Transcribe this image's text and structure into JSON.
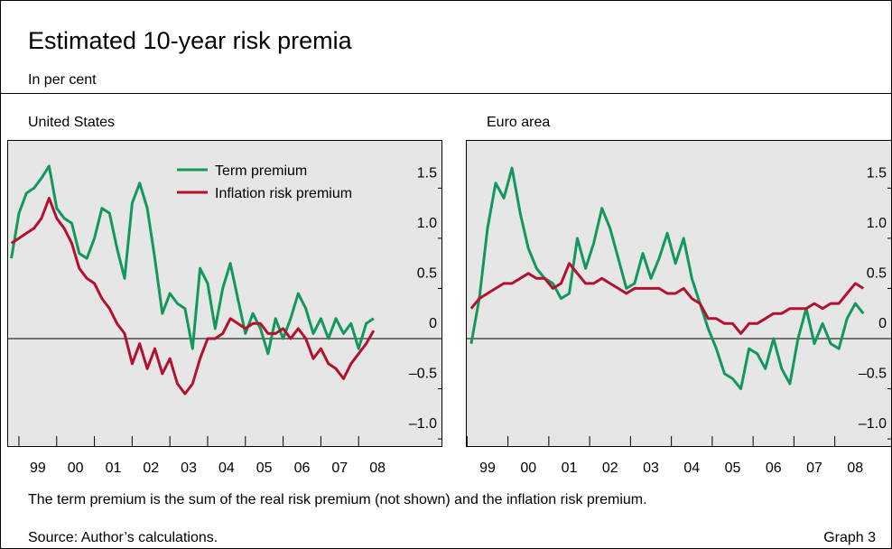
{
  "header": {
    "title": "Estimated 10-year risk premia",
    "subtitle": "In per cent"
  },
  "chart_data": [
    {
      "type": "line",
      "title": "United States",
      "legend": true,
      "x": [
        1998.8,
        1999,
        1999.2,
        1999.4,
        1999.6,
        1999.8,
        2000,
        2000.2,
        2000.4,
        2000.6,
        2000.8,
        2001,
        2001.2,
        2001.4,
        2001.6,
        2001.8,
        2002,
        2002.2,
        2002.4,
        2002.6,
        2002.8,
        2003,
        2003.2,
        2003.4,
        2003.6,
        2003.8,
        2004,
        2004.2,
        2004.4,
        2004.6,
        2004.8,
        2005,
        2005.2,
        2005.4,
        2005.6,
        2005.8,
        2006,
        2006.2,
        2006.4,
        2006.6,
        2006.8,
        2007,
        2007.2,
        2007.4,
        2007.6,
        2007.8,
        2008,
        2008.2,
        2008.4
      ],
      "series": [
        {
          "name": "Term premium",
          "color": "#12985a",
          "values": [
            0.8,
            1.25,
            1.45,
            1.5,
            1.6,
            1.72,
            1.3,
            1.2,
            1.15,
            0.85,
            0.8,
            1.0,
            1.3,
            1.25,
            0.9,
            0.6,
            1.35,
            1.55,
            1.3,
            0.8,
            0.25,
            0.45,
            0.35,
            0.3,
            -0.1,
            0.7,
            0.55,
            0.1,
            0.5,
            0.75,
            0.4,
            0.05,
            0.25,
            0.1,
            -0.15,
            0.2,
            0.0,
            0.2,
            0.45,
            0.3,
            0.05,
            0.2,
            0.0,
            0.2,
            0.05,
            0.15,
            -0.1,
            0.15,
            0.2
          ]
        },
        {
          "name": "Inflation risk premium",
          "color": "#b3122e",
          "values": [
            0.95,
            1.0,
            1.05,
            1.1,
            1.2,
            1.4,
            1.2,
            1.1,
            0.95,
            0.7,
            0.6,
            0.55,
            0.4,
            0.3,
            0.15,
            0.05,
            -0.25,
            -0.05,
            -0.3,
            -0.1,
            -0.35,
            -0.2,
            -0.45,
            -0.55,
            -0.45,
            -0.2,
            0.0,
            0.0,
            0.05,
            0.2,
            0.15,
            0.1,
            0.15,
            0.15,
            0.05,
            0.05,
            0.1,
            0.0,
            0.1,
            0.0,
            -0.2,
            -0.1,
            -0.25,
            -0.3,
            -0.4,
            -0.25,
            -0.15,
            -0.05,
            0.08
          ]
        }
      ],
      "xlim": [
        1998.69,
        2010.22
      ],
      "xticks": [
        {
          "value": 1999,
          "label": "99"
        },
        {
          "value": 2000,
          "label": "00"
        },
        {
          "value": 2001,
          "label": "01"
        },
        {
          "value": 2002,
          "label": "02"
        },
        {
          "value": 2003,
          "label": "03"
        },
        {
          "value": 2004,
          "label": "04"
        },
        {
          "value": 2005,
          "label": "05"
        },
        {
          "value": 2006,
          "label": "06"
        },
        {
          "value": 2007,
          "label": "07"
        },
        {
          "value": 2008,
          "label": "08"
        }
      ],
      "ylim": [
        -1.08,
        1.98
      ],
      "yticks": [
        {
          "value": -1,
          "label": "–1.0"
        },
        {
          "value": -0.5,
          "label": "–0.5"
        },
        0,
        0.5,
        {
          "value": 1,
          "label": "1.0"
        },
        1.5
      ]
    },
    {
      "type": "line",
      "title": "Euro area",
      "legend": false,
      "x": [
        1999.1,
        1999.3,
        1999.5,
        1999.7,
        1999.9,
        2000.1,
        2000.3,
        2000.5,
        2000.7,
        2000.9,
        2001.1,
        2001.3,
        2001.5,
        2001.7,
        2001.9,
        2002.1,
        2002.3,
        2002.5,
        2002.7,
        2002.9,
        2003.1,
        2003.3,
        2003.5,
        2003.7,
        2003.9,
        2004.1,
        2004.3,
        2004.5,
        2004.7,
        2004.9,
        2005.1,
        2005.3,
        2005.5,
        2005.7,
        2005.9,
        2006.1,
        2006.3,
        2006.5,
        2006.7,
        2006.9,
        2007.1,
        2007.3,
        2007.5,
        2007.7,
        2007.9,
        2008.1,
        2008.3,
        2008.5,
        2008.7
      ],
      "series": [
        {
          "name": "Term premium",
          "color": "#12985a",
          "values": [
            -0.05,
            0.4,
            1.1,
            1.55,
            1.4,
            1.7,
            1.25,
            0.9,
            0.7,
            0.6,
            0.55,
            0.4,
            0.45,
            1.0,
            0.7,
            0.95,
            1.3,
            1.1,
            0.8,
            0.5,
            0.55,
            0.85,
            0.6,
            0.8,
            1.05,
            0.75,
            1.0,
            0.6,
            0.35,
            0.1,
            -0.1,
            -0.35,
            -0.4,
            -0.5,
            -0.1,
            -0.15,
            -0.3,
            0.0,
            -0.3,
            -0.45,
            0.0,
            0.3,
            -0.05,
            0.15,
            -0.05,
            -0.1,
            0.2,
            0.35,
            0.25
          ]
        },
        {
          "name": "Inflation risk premium",
          "color": "#b3122e",
          "values": [
            0.3,
            0.4,
            0.45,
            0.5,
            0.55,
            0.55,
            0.6,
            0.65,
            0.6,
            0.6,
            0.5,
            0.55,
            0.75,
            0.65,
            0.55,
            0.55,
            0.6,
            0.55,
            0.5,
            0.45,
            0.5,
            0.5,
            0.5,
            0.5,
            0.45,
            0.45,
            0.5,
            0.4,
            0.35,
            0.2,
            0.2,
            0.15,
            0.15,
            0.05,
            0.15,
            0.15,
            0.2,
            0.25,
            0.25,
            0.3,
            0.3,
            0.3,
            0.35,
            0.3,
            0.35,
            0.35,
            0.45,
            0.55,
            0.5
          ]
        }
      ],
      "xlim": [
        1998.97,
        2009.4
      ],
      "xticks": [
        {
          "value": 1999,
          "label": "99"
        },
        {
          "value": 2000,
          "label": "00"
        },
        {
          "value": 2001,
          "label": "01"
        },
        {
          "value": 2002,
          "label": "02"
        },
        {
          "value": 2003,
          "label": "03"
        },
        {
          "value": 2004,
          "label": "04"
        },
        {
          "value": 2005,
          "label": "05"
        },
        {
          "value": 2006,
          "label": "06"
        },
        {
          "value": 2007,
          "label": "07"
        },
        {
          "value": 2008,
          "label": "08"
        }
      ],
      "ylim": [
        -1.08,
        1.98
      ],
      "yticks": [
        {
          "value": -1,
          "label": "–1.0"
        },
        {
          "value": -0.5,
          "label": "–0.5"
        },
        0,
        0.5,
        {
          "value": 1,
          "label": "1.0"
        },
        1.5
      ]
    }
  ],
  "footer": {
    "note": "The term premium is the sum of the real risk premium (not shown) and the inflation risk premium.",
    "source": "Source: Author’s calculations.",
    "label": "Graph 3"
  }
}
